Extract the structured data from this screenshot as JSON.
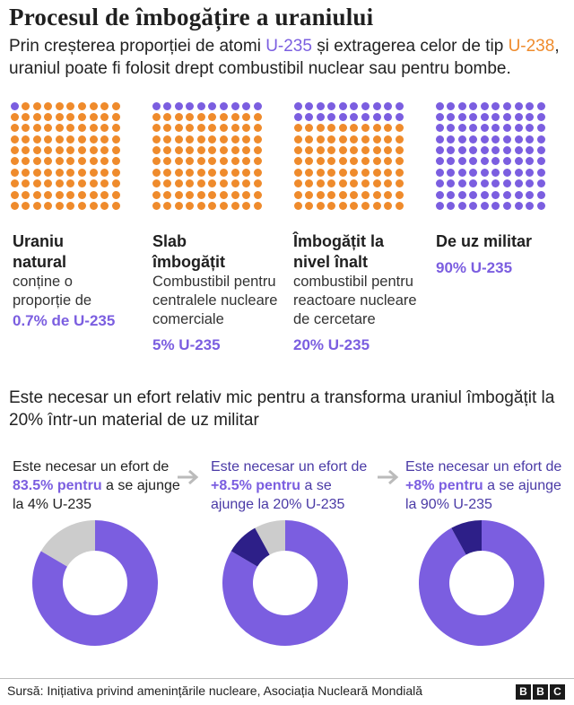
{
  "title": "Procesul de îmbogățire a uraniului",
  "intro": {
    "part1": "Prin creșterea proporției de atomi ",
    "u235": "U-235",
    "part2": " și extragerea celor de tip ",
    "u238": "U-238",
    "part3": ", uraniul poate fi folosit drept combustibil nuclear sau pentru bombe."
  },
  "colors": {
    "u235": "#7b5ee0",
    "u238": "#ef8b2c",
    "effort_prev": "#2d1f88",
    "remaining": "#cccccc"
  },
  "categories": [
    {
      "title": "Uraniu natural",
      "desc": "conține o proporție de",
      "pct": "0.7% de U-235",
      "purple_dots": 1
    },
    {
      "title": "Slab îmbogățit",
      "desc": "Combustibil pentru centralele nucleare comerciale",
      "pct": "5% U-235",
      "purple_dots": 10
    },
    {
      "title": "Îmbogățit la nivel înalt",
      "desc": "combustibil pentru reactoare nucleare de cercetare",
      "pct": "20% U-235",
      "purple_dots": 20
    },
    {
      "title": "De uz militar",
      "desc": "",
      "pct": "90% U-235",
      "purple_dots": 100
    }
  ],
  "section_heading": "Este necesar un efort relativ mic pentru a transforma uraniul îmbogățit la 20% într-un material de uz militar",
  "chart_data": {
    "type": "pie",
    "variant": "donut",
    "charts": [
      {
        "text_pre": "Este necesar un efort de ",
        "pct": "83.5% pentru",
        "text_post": " a se ajunge la 4% U-235",
        "slices": [
          {
            "value": 83.5,
            "role": "new"
          },
          {
            "value": 16.5,
            "role": "remaining"
          }
        ]
      },
      {
        "text_pre": "Este necesar un efort de ",
        "pct": "+8.5% pentru",
        "text_post": " a se ajunge la 20% U-235",
        "slices": [
          {
            "value": 83.5,
            "role": "new"
          },
          {
            "value": 8.5,
            "role": "previous"
          },
          {
            "value": 8,
            "role": "remaining"
          }
        ]
      },
      {
        "text_pre": "Este necesar un efort de ",
        "pct": "+8%",
        "pct2": "pentru",
        "text_post": " a se ajunge la 90% U-235",
        "slices": [
          {
            "value": 92,
            "role": "new"
          },
          {
            "value": 8,
            "role": "previous"
          }
        ]
      }
    ]
  },
  "footer": "Sursă: Inițiativa privind amenințările nucleare, Asociația Nucleară Mondială",
  "logo": [
    "B",
    "B",
    "C"
  ]
}
